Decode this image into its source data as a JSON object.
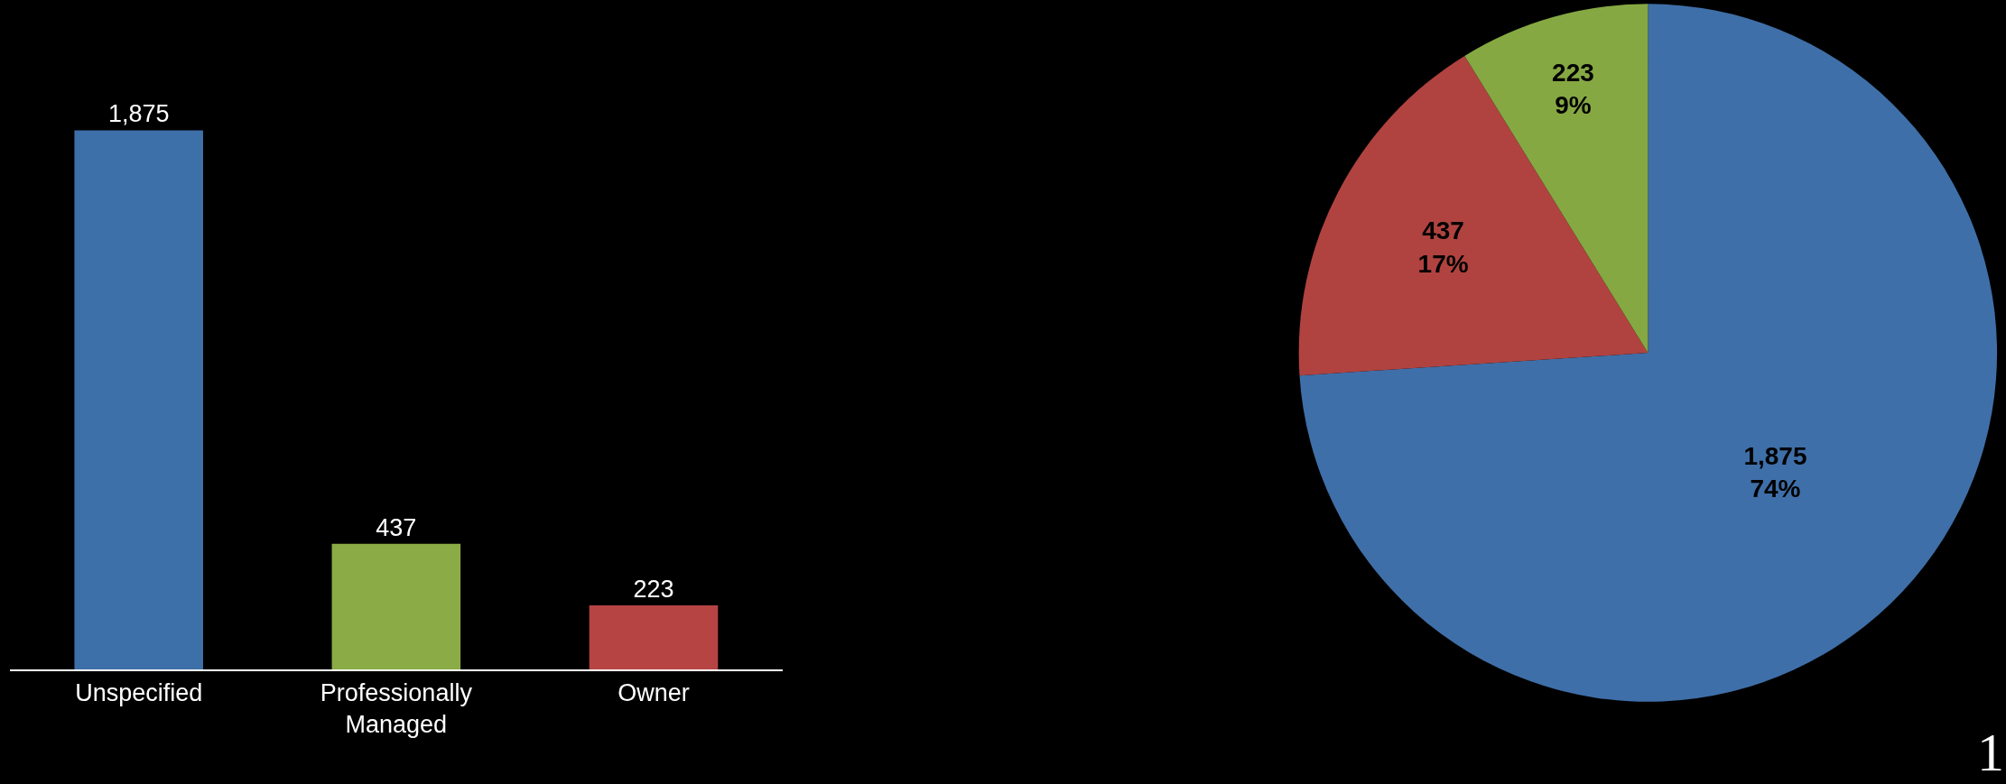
{
  "chart_data": [
    {
      "type": "bar",
      "categories": [
        "Unspecified",
        "Professionally\nManaged",
        "Owner"
      ],
      "values": [
        1875,
        437,
        223
      ],
      "colors": [
        "#3d6fa8",
        "#8aab46",
        "#b54442"
      ],
      "data_labels": true,
      "value_labels": [
        "1,875",
        "437",
        "223"
      ]
    },
    {
      "type": "pie",
      "categories": [
        null,
        null,
        null
      ],
      "values": [
        1875,
        437,
        223
      ],
      "colors": [
        "#3f6fa8",
        "#b04340",
        "#86a843"
      ],
      "value_labels": [
        "1,875\n74%",
        "437\n17%",
        "223\n9%"
      ],
      "annotations": [
        "1"
      ]
    }
  ]
}
